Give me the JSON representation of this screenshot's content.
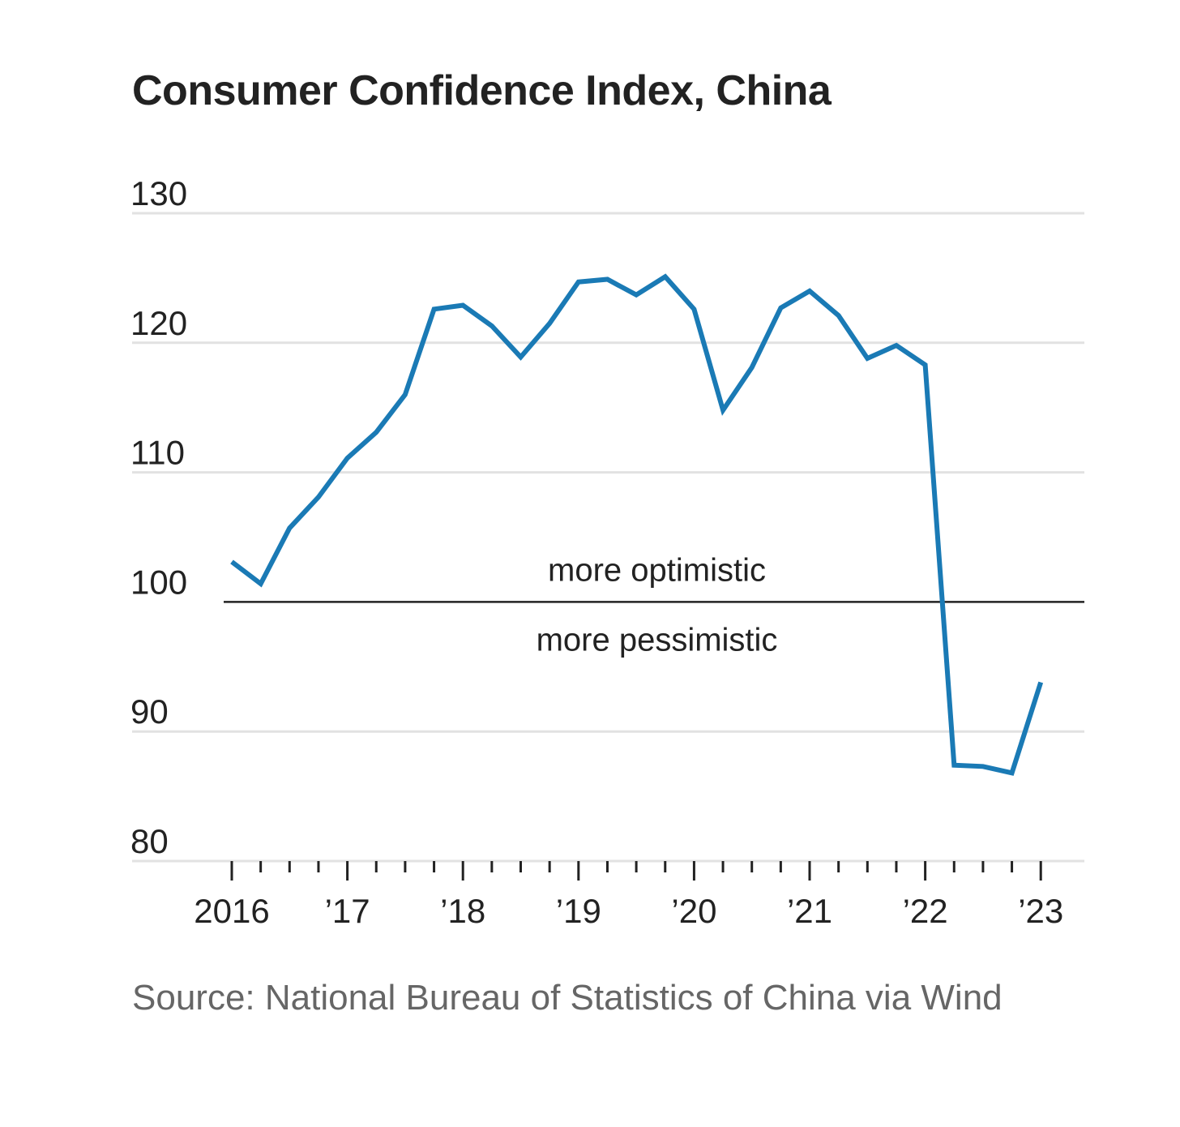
{
  "title": "Consumer Confidence Index, China",
  "source": "Source: National Bureau of Statistics of China via Wind",
  "annotations": {
    "above": "more optimistic",
    "below": "more pessimistic"
  },
  "colors": {
    "line": "#1a7ab5",
    "grid": "#e2e2e2",
    "baseline": "#222222",
    "text": "#222222",
    "source": "#666666"
  },
  "chart_data": {
    "type": "line",
    "title": "Consumer Confidence Index, China",
    "ylim": [
      80,
      130
    ],
    "yticks": [
      80,
      90,
      100,
      110,
      120,
      130
    ],
    "xlim": [
      2016,
      2023.3
    ],
    "xticks": [
      {
        "value": 2016,
        "label": "2016"
      },
      {
        "value": 2017,
        "label": "’17"
      },
      {
        "value": 2018,
        "label": "’18"
      },
      {
        "value": 2019,
        "label": "’19"
      },
      {
        "value": 2020,
        "label": "’20"
      },
      {
        "value": 2021,
        "label": "’21"
      },
      {
        "value": 2022,
        "label": "’22"
      },
      {
        "value": 2023,
        "label": "’23"
      }
    ],
    "reference_line": 100,
    "grid": true,
    "series": [
      {
        "x": [
          2016.0,
          2016.25,
          2016.5,
          2016.75,
          2017.0,
          2017.25,
          2017.5,
          2017.75,
          2018.0,
          2018.25,
          2018.5,
          2018.75,
          2019.0,
          2019.25,
          2019.5,
          2019.75,
          2020.0,
          2020.25,
          2020.5,
          2020.75,
          2021.0,
          2021.25,
          2021.5,
          2021.75,
          2022.0,
          2022.25,
          2022.5,
          2022.75,
          2023.0
        ],
        "y": [
          103.1,
          101.4,
          105.7,
          108.1,
          111.1,
          113.1,
          116.0,
          122.6,
          122.9,
          121.3,
          118.9,
          121.5,
          124.7,
          124.9,
          123.7,
          125.1,
          122.6,
          114.8,
          118.1,
          122.7,
          124.0,
          122.1,
          118.8,
          119.8,
          118.3,
          87.4,
          87.3,
          86.8,
          93.8
        ]
      }
    ]
  }
}
